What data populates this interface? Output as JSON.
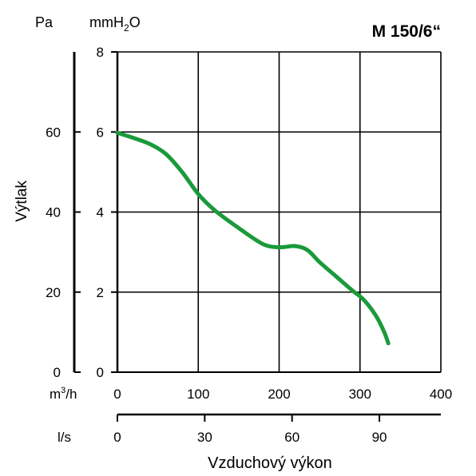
{
  "chart_data": {
    "type": "line",
    "title": "M 150/6“",
    "xlabel": "Vzduchový výkon",
    "ylabel": "Výtlak",
    "x_unit": "m3/h",
    "x_unit_base": "m",
    "x_unit_sup": "3",
    "x_unit_tail": "/h",
    "x2_unit": "l/s",
    "y_unit_left": "Pa",
    "y_unit_right_base": "mmH",
    "y_unit_right_sub": "2",
    "y_unit_right_tail": "O",
    "xlim": [
      0,
      400
    ],
    "ylim_mmH2O": [
      0,
      8
    ],
    "ylim_Pa": [
      0,
      80
    ],
    "x_ticks": [
      0,
      100,
      200,
      300,
      400
    ],
    "x2_ticks": [
      0,
      30,
      60,
      90
    ],
    "y_ticks_mmH2O": [
      0,
      2,
      4,
      6,
      8
    ],
    "y_ticks_Pa": [
      0,
      20,
      40,
      60
    ],
    "grid": true,
    "colors": {
      "curve": "#1a9a3a",
      "axes": "#000000"
    },
    "series": [
      {
        "x": [
          0,
          20,
          40,
          60,
          80,
          100,
          120,
          150,
          180,
          200,
          220,
          235,
          250,
          270,
          290,
          305,
          320,
          330,
          335
        ],
        "y": [
          5.98,
          5.85,
          5.7,
          5.45,
          5.0,
          4.45,
          4.05,
          3.6,
          3.2,
          3.12,
          3.15,
          3.05,
          2.75,
          2.4,
          2.05,
          1.8,
          1.4,
          1.0,
          0.72
        ]
      }
    ]
  }
}
